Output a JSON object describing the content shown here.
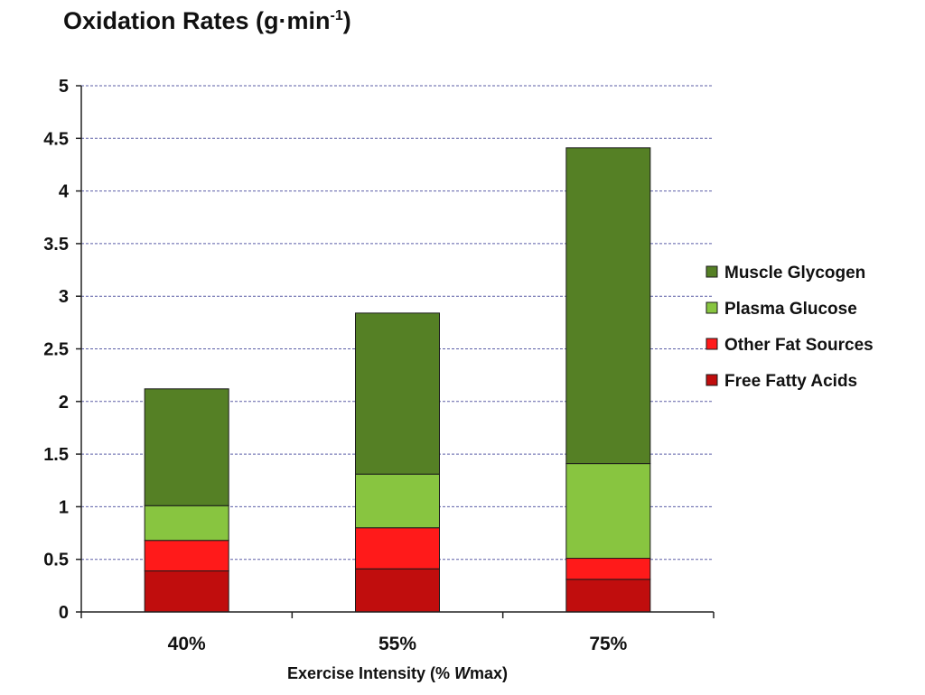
{
  "chart_data": {
    "type": "bar",
    "stacked": true,
    "title": "Oxidation Rates (g·min",
    "title_superscript": "-1",
    "xlabel": "Exercise Intensity (% ",
    "xlabel_italic": "W",
    "xlabel_suffix": "max)",
    "ylabel": "",
    "ylim": [
      0,
      5
    ],
    "yticks": [
      "0",
      "0.5",
      "1",
      "1.5",
      "2",
      "2.5",
      "3",
      "3.5",
      "4",
      "4.5",
      "5"
    ],
    "ytick_values": [
      0,
      0.5,
      1,
      1.5,
      2,
      2.5,
      3,
      3.5,
      4,
      4.5,
      5
    ],
    "grid": "horizontal dashed",
    "legend_position": "right",
    "categories": [
      "40%",
      "55%",
      "75%"
    ],
    "series": [
      {
        "name": "Free Fatty Acids",
        "color": "#c00d0d",
        "values": [
          0.39,
          0.41,
          0.31
        ]
      },
      {
        "name": "Other Fat Sources",
        "color": "#ff1a1a",
        "values": [
          0.29,
          0.39,
          0.2
        ]
      },
      {
        "name": "Plasma Glucose",
        "color": "#88c540",
        "values": [
          0.33,
          0.51,
          0.9
        ]
      },
      {
        "name": "Muscle Glycogen",
        "color": "#558025",
        "values": [
          1.11,
          1.53,
          3.0
        ]
      }
    ],
    "legend_order": [
      "Muscle Glycogen",
      "Plasma Glucose",
      "Other Fat Sources",
      "Free Fatty Acids"
    ]
  }
}
